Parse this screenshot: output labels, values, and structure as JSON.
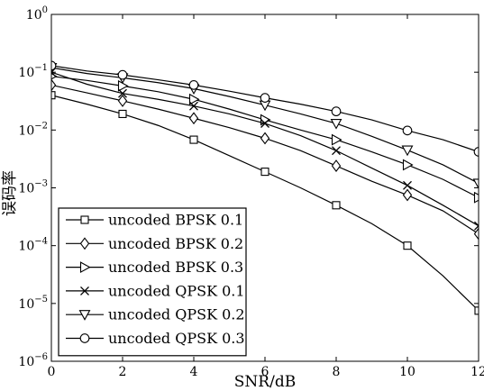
{
  "chart_data": {
    "type": "line",
    "xlabel": "SNR/dB",
    "ylabel": "误码率",
    "xlim": [
      0,
      12
    ],
    "ylim": [
      1e-06,
      1
    ],
    "yscale": "log",
    "x_ticks": [
      {
        "value": 0,
        "label": "0"
      },
      {
        "value": 2,
        "label": "2"
      },
      {
        "value": 4,
        "label": "4"
      },
      {
        "value": 6,
        "label": "6"
      },
      {
        "value": 8,
        "label": "8"
      },
      {
        "value": 10,
        "label": "10"
      },
      {
        "value": 12,
        "label": "12"
      }
    ],
    "y_ticks": [
      {
        "exp": 0,
        "base": "10",
        "sup": "0"
      },
      {
        "exp": -1,
        "base": "10",
        "sup": "−1"
      },
      {
        "exp": -2,
        "base": "10",
        "sup": "−2"
      },
      {
        "exp": -3,
        "base": "10",
        "sup": "−3"
      },
      {
        "exp": -4,
        "base": "10",
        "sup": "−4"
      },
      {
        "exp": -5,
        "base": "10",
        "sup": "−5"
      },
      {
        "exp": -6,
        "base": "10",
        "sup": "−6"
      }
    ],
    "grid": false,
    "legend_position": "bottom-left",
    "series": [
      {
        "name": "uncoded BPSK 0.1",
        "marker": "square",
        "x": [
          0,
          1,
          2,
          3,
          4,
          5,
          6,
          7,
          8,
          9,
          10,
          11,
          12
        ],
        "y": [
          0.04,
          0.028,
          0.019,
          0.012,
          0.0068,
          0.0036,
          0.0019,
          0.001,
          0.0005,
          0.00024,
          0.0001,
          3e-05,
          7.5e-06
        ],
        "marker_x": [
          0,
          2,
          4,
          6,
          8,
          10,
          12
        ]
      },
      {
        "name": "uncoded BPSK 0.2",
        "marker": "diamond",
        "x": [
          0,
          1,
          2,
          3,
          4,
          5,
          6,
          7,
          8,
          9,
          10,
          11,
          12
        ],
        "y": [
          0.06,
          0.044,
          0.032,
          0.023,
          0.016,
          0.011,
          0.0072,
          0.0044,
          0.0024,
          0.0013,
          0.00075,
          0.0004,
          0.00016
        ],
        "marker_x": [
          0,
          2,
          4,
          6,
          8,
          10,
          12
        ]
      },
      {
        "name": "uncoded BPSK 0.3",
        "marker": "triangle-right",
        "x": [
          0,
          1,
          2,
          3,
          4,
          5,
          6,
          7,
          8,
          9,
          10,
          11,
          12
        ],
        "y": [
          0.085,
          0.072,
          0.058,
          0.046,
          0.034,
          0.023,
          0.015,
          0.01,
          0.0068,
          0.0042,
          0.0025,
          0.0014,
          0.00068
        ],
        "marker_x": [
          0,
          2,
          4,
          6,
          8,
          10,
          12
        ]
      },
      {
        "name": "uncoded QPSK 0.1",
        "marker": "x",
        "x": [
          0,
          1,
          2,
          3,
          4,
          5,
          6,
          7,
          8,
          9,
          10,
          11,
          12
        ],
        "y": [
          0.1,
          0.062,
          0.043,
          0.034,
          0.026,
          0.019,
          0.013,
          0.008,
          0.0044,
          0.0022,
          0.0011,
          0.0005,
          0.00022
        ],
        "marker_x": [
          0,
          2,
          4,
          6,
          8,
          10,
          12
        ]
      },
      {
        "name": "uncoded QPSK 0.2",
        "marker": "triangle-down",
        "x": [
          0,
          1,
          2,
          3,
          4,
          5,
          6,
          7,
          8,
          9,
          10,
          11,
          12
        ],
        "y": [
          0.12,
          0.095,
          0.08,
          0.066,
          0.052,
          0.038,
          0.027,
          0.019,
          0.013,
          0.0078,
          0.0045,
          0.0025,
          0.0012
        ],
        "marker_x": [
          0,
          2,
          4,
          6,
          8,
          10,
          12
        ]
      },
      {
        "name": "uncoded QPSK 0.3",
        "marker": "circle",
        "x": [
          0,
          1,
          2,
          3,
          4,
          5,
          6,
          7,
          8,
          9,
          10,
          11,
          12
        ],
        "y": [
          0.13,
          0.105,
          0.09,
          0.074,
          0.06,
          0.047,
          0.036,
          0.028,
          0.021,
          0.015,
          0.0098,
          0.0068,
          0.0042
        ],
        "marker_x": [
          0,
          2,
          4,
          6,
          8,
          10,
          12
        ]
      }
    ]
  }
}
